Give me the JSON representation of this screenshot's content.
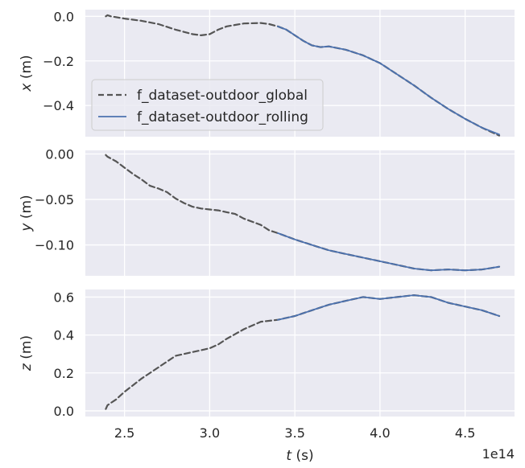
{
  "chart_data": [
    {
      "type": "line",
      "ylabel_symbol": "x",
      "ylabel_unit": " (m)",
      "ylim": [
        -0.54,
        0.03
      ],
      "yticks": [
        0.0,
        -0.2,
        -0.4
      ],
      "ytick_labels": [
        "0.0",
        "−0.2",
        "−0.4"
      ],
      "xlim": [
        2.27,
        4.79
      ],
      "grid": true,
      "legend": {
        "placement": "center-left",
        "entries": [
          {
            "label": "f_dataset-outdoor_global",
            "style": "dashed",
            "color": "#555555"
          },
          {
            "label": "f_dataset-outdoor_rolling",
            "style": "solid",
            "color": "#4c72b0"
          }
        ]
      },
      "series": [
        {
          "name": "f_dataset-outdoor_global",
          "x": [
            2.39,
            2.4,
            2.42,
            2.5,
            2.6,
            2.7,
            2.8,
            2.9,
            2.95,
            3.0,
            3.05,
            3.1,
            3.2,
            3.3,
            3.35,
            3.4,
            3.45,
            3.5,
            3.55,
            3.6,
            3.65,
            3.7,
            3.8,
            3.9,
            4.0,
            4.1,
            4.2,
            4.3,
            4.4,
            4.5,
            4.6,
            4.7
          ],
          "y": [
            0.0,
            0.005,
            0.0,
            -0.01,
            -0.02,
            -0.035,
            -0.06,
            -0.08,
            -0.085,
            -0.08,
            -0.06,
            -0.045,
            -0.032,
            -0.03,
            -0.035,
            -0.045,
            -0.06,
            -0.085,
            -0.11,
            -0.13,
            -0.138,
            -0.135,
            -0.15,
            -0.175,
            -0.21,
            -0.26,
            -0.31,
            -0.365,
            -0.415,
            -0.46,
            -0.5,
            -0.535
          ]
        },
        {
          "name": "f_dataset-outdoor_rolling",
          "x": [
            3.4,
            3.45,
            3.5,
            3.55,
            3.6,
            3.65,
            3.7,
            3.8,
            3.9,
            4.0,
            4.1,
            4.2,
            4.3,
            4.4,
            4.5,
            4.6,
            4.7
          ],
          "y": [
            -0.045,
            -0.06,
            -0.085,
            -0.11,
            -0.13,
            -0.138,
            -0.135,
            -0.15,
            -0.175,
            -0.21,
            -0.26,
            -0.31,
            -0.365,
            -0.415,
            -0.46,
            -0.5,
            -0.53
          ]
        }
      ]
    },
    {
      "type": "line",
      "ylabel_symbol": "y",
      "ylabel_unit": " (m)",
      "ylim": [
        -0.134,
        0.004
      ],
      "yticks": [
        0.0,
        -0.05,
        -0.1
      ],
      "ytick_labels": [
        "0.00",
        "−0.05",
        "−0.10"
      ],
      "xlim": [
        2.27,
        4.79
      ],
      "grid": true,
      "series": [
        {
          "name": "f_dataset-outdoor_global",
          "x": [
            2.39,
            2.4,
            2.45,
            2.5,
            2.55,
            2.6,
            2.65,
            2.7,
            2.75,
            2.8,
            2.85,
            2.9,
            2.95,
            3.0,
            3.05,
            3.1,
            3.15,
            3.2,
            3.3,
            3.35,
            3.4,
            3.5,
            3.6,
            3.7,
            3.8,
            3.9,
            4.0,
            4.1,
            4.2,
            4.3,
            4.4,
            4.5,
            4.6,
            4.7
          ],
          "y": [
            -0.001,
            -0.003,
            -0.008,
            -0.015,
            -0.022,
            -0.028,
            -0.035,
            -0.038,
            -0.042,
            -0.049,
            -0.054,
            -0.058,
            -0.06,
            -0.061,
            -0.062,
            -0.064,
            -0.066,
            -0.071,
            -0.078,
            -0.084,
            -0.087,
            -0.094,
            -0.1,
            -0.106,
            -0.11,
            -0.114,
            -0.118,
            -0.122,
            -0.126,
            -0.128,
            -0.127,
            -0.128,
            -0.127,
            -0.124
          ]
        },
        {
          "name": "f_dataset-outdoor_rolling",
          "x": [
            3.4,
            3.5,
            3.6,
            3.7,
            3.8,
            3.9,
            4.0,
            4.1,
            4.2,
            4.3,
            4.4,
            4.5,
            4.6,
            4.7
          ],
          "y": [
            -0.087,
            -0.094,
            -0.1,
            -0.106,
            -0.11,
            -0.114,
            -0.118,
            -0.122,
            -0.126,
            -0.128,
            -0.127,
            -0.128,
            -0.127,
            -0.124
          ]
        }
      ]
    },
    {
      "type": "line",
      "ylabel_symbol": "z",
      "ylabel_unit": " (m)",
      "ylim": [
        -0.03,
        0.64
      ],
      "yticks": [
        0.0,
        0.2,
        0.4,
        0.6
      ],
      "ytick_labels": [
        "0.0",
        "0.2",
        "0.4",
        "0.6"
      ],
      "xlim": [
        2.27,
        4.79
      ],
      "xticks": [
        2.5,
        3.0,
        3.5,
        4.0,
        4.5
      ],
      "xtick_labels": [
        "2.5",
        "3.0",
        "3.5",
        "4.0",
        "4.5"
      ],
      "xlabel_symbol": "t",
      "xlabel_unit": " (s)",
      "x_offset_label": "1e14",
      "grid": true,
      "series": [
        {
          "name": "f_dataset-outdoor_global",
          "x": [
            2.39,
            2.4,
            2.45,
            2.5,
            2.6,
            2.7,
            2.8,
            2.9,
            2.95,
            3.0,
            3.05,
            3.1,
            3.2,
            3.3,
            3.4,
            3.5,
            3.6,
            3.7,
            3.8,
            3.9,
            4.0,
            4.1,
            4.2,
            4.25,
            4.3,
            4.4,
            4.5,
            4.6,
            4.7
          ],
          "y": [
            0.01,
            0.03,
            0.06,
            0.1,
            0.17,
            0.23,
            0.29,
            0.31,
            0.32,
            0.33,
            0.35,
            0.38,
            0.43,
            0.47,
            0.48,
            0.5,
            0.53,
            0.56,
            0.58,
            0.6,
            0.59,
            0.6,
            0.61,
            0.605,
            0.6,
            0.57,
            0.55,
            0.53,
            0.5
          ]
        },
        {
          "name": "f_dataset-outdoor_rolling",
          "x": [
            3.4,
            3.5,
            3.6,
            3.7,
            3.8,
            3.9,
            4.0,
            4.1,
            4.2,
            4.25,
            4.3,
            4.4,
            4.5,
            4.6,
            4.7
          ],
          "y": [
            0.48,
            0.5,
            0.53,
            0.56,
            0.58,
            0.6,
            0.59,
            0.6,
            0.61,
            0.605,
            0.6,
            0.57,
            0.55,
            0.53,
            0.5
          ]
        }
      ]
    }
  ]
}
